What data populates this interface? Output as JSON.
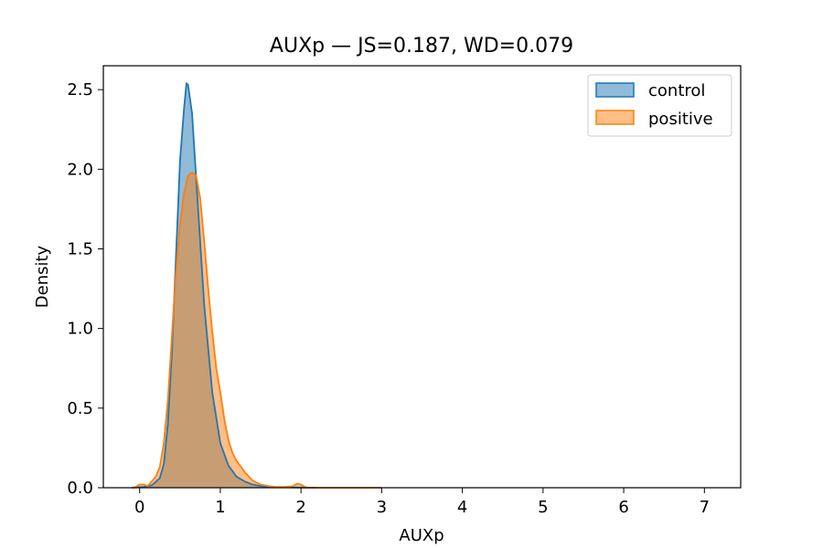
{
  "chart_data": {
    "type": "area",
    "title": "AUXp — JS=0.187, WD=0.079",
    "xlabel": "AUXp",
    "ylabel": "Density",
    "xlim": [
      -0.45,
      7.45
    ],
    "ylim": [
      0,
      2.65
    ],
    "xticks": [
      0,
      1,
      2,
      3,
      4,
      5,
      6,
      7
    ],
    "yticks": [
      0.0,
      0.5,
      1.0,
      1.5,
      2.0,
      2.5
    ],
    "ytick_labels": [
      "0.0",
      "0.5",
      "1.0",
      "1.5",
      "2.0",
      "2.5"
    ],
    "grid": false,
    "legend_position": "top-right",
    "series": [
      {
        "name": "control",
        "color": "#1f77b4",
        "x": [
          -0.1,
          0.05,
          0.15,
          0.25,
          0.3,
          0.35,
          0.4,
          0.45,
          0.5,
          0.55,
          0.58,
          0.6,
          0.65,
          0.7,
          0.75,
          0.8,
          0.9,
          1.0,
          1.1,
          1.2,
          1.3,
          1.4,
          1.5,
          1.6,
          1.8,
          2.0,
          2.2
        ],
        "y": [
          0.0,
          0.005,
          0.015,
          0.06,
          0.15,
          0.4,
          0.85,
          1.45,
          2.05,
          2.38,
          2.54,
          2.53,
          2.35,
          1.95,
          1.55,
          1.15,
          0.6,
          0.28,
          0.14,
          0.07,
          0.04,
          0.02,
          0.01,
          0.005,
          0.002,
          0.001,
          0.0
        ]
      },
      {
        "name": "positive",
        "color": "#ff7f0e",
        "x": [
          -0.1,
          -0.05,
          0.0,
          0.05,
          0.1,
          0.15,
          0.2,
          0.25,
          0.3,
          0.35,
          0.4,
          0.45,
          0.5,
          0.55,
          0.6,
          0.65,
          0.7,
          0.75,
          0.8,
          0.85,
          0.9,
          0.95,
          1.0,
          1.05,
          1.1,
          1.15,
          1.2,
          1.3,
          1.4,
          1.5,
          1.6,
          1.7,
          1.8,
          1.9,
          1.95,
          2.0,
          2.05,
          2.1,
          2.3,
          2.6,
          3.0
        ],
        "y": [
          0.0,
          0.005,
          0.02,
          0.02,
          0.01,
          0.04,
          0.07,
          0.13,
          0.28,
          0.55,
          0.95,
          1.35,
          1.65,
          1.85,
          1.96,
          1.98,
          1.96,
          1.82,
          1.55,
          1.25,
          0.98,
          0.75,
          0.6,
          0.43,
          0.3,
          0.22,
          0.17,
          0.1,
          0.045,
          0.02,
          0.01,
          0.005,
          0.005,
          0.01,
          0.025,
          0.02,
          0.005,
          0.0,
          0.0,
          0.0,
          0.0
        ]
      }
    ]
  }
}
